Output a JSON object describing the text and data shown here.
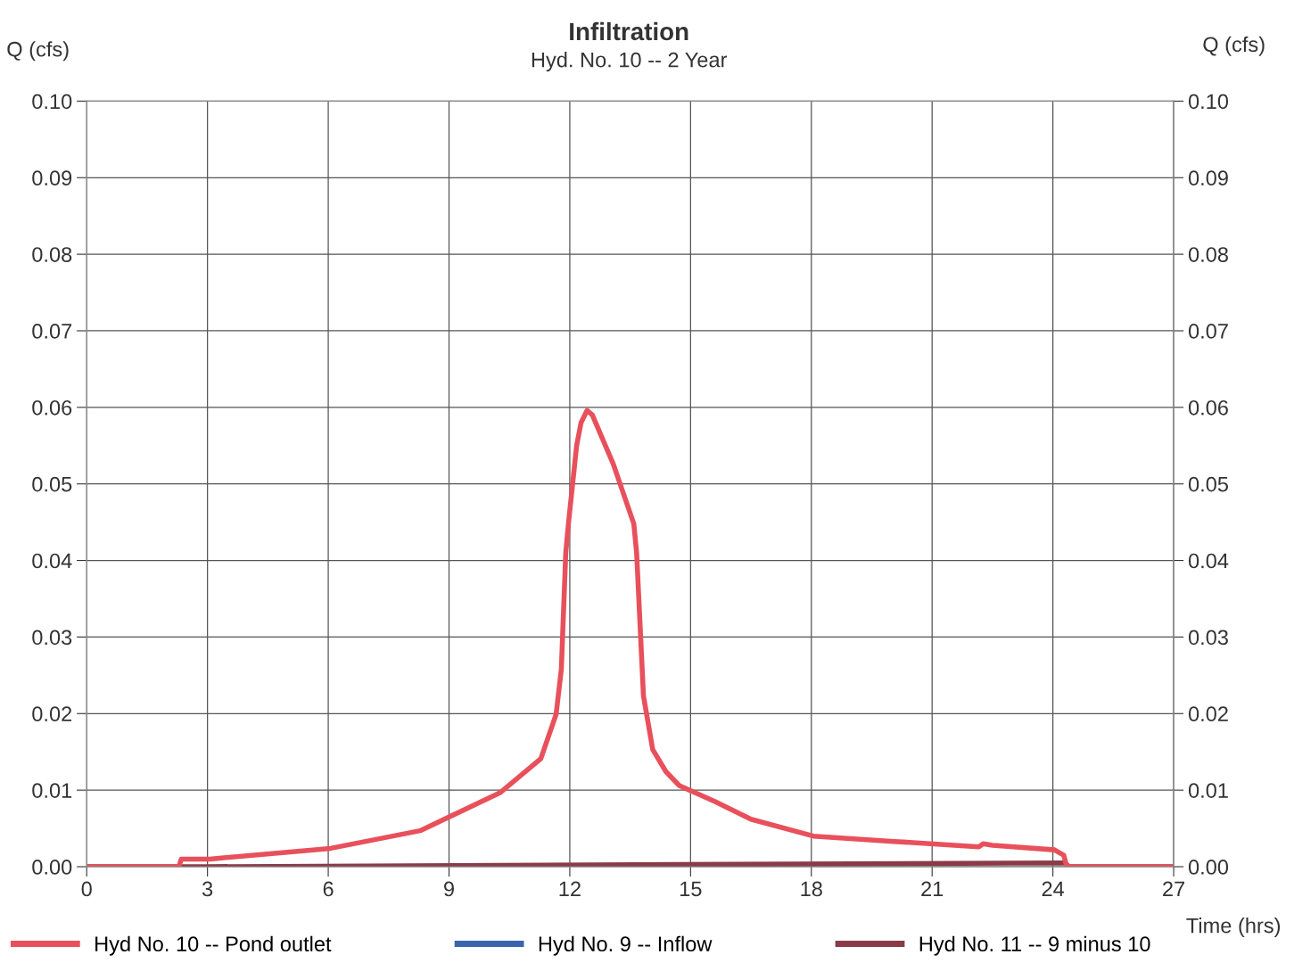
{
  "chart_data": {
    "type": "line",
    "title": "Infiltration",
    "subtitle": "Hyd. No. 10 -- 2 Year",
    "xlabel": "Time (hrs)",
    "ylabel": "Q (cfs)",
    "y2label": "Q (cfs)",
    "xlim": [
      0,
      27
    ],
    "xticks": [
      0,
      3,
      6,
      9,
      12,
      15,
      18,
      21,
      24,
      27
    ],
    "ylim": [
      0,
      0.1
    ],
    "yticks": [
      {
        "value": 0,
        "label": "0.00"
      },
      {
        "value": 0.01,
        "label": "0.01"
      },
      {
        "value": 0.02,
        "label": "0.02"
      },
      {
        "value": 0.03,
        "label": "0.03"
      },
      {
        "value": 0.04,
        "label": "0.04"
      },
      {
        "value": 0.05,
        "label": "0.05"
      },
      {
        "value": 0.06,
        "label": "0.06"
      },
      {
        "value": 0.07,
        "label": "0.07"
      },
      {
        "value": 0.08,
        "label": "0.08"
      },
      {
        "value": 0.09,
        "label": "0.09"
      },
      {
        "value": 0.1,
        "label": "0.10"
      }
    ],
    "y2lim": [
      0,
      0.1
    ],
    "y2ticks": [
      {
        "value": 0,
        "label": "0.00"
      },
      {
        "value": 0.01,
        "label": "0.01"
      },
      {
        "value": 0.02,
        "label": "0.02"
      },
      {
        "value": 0.03,
        "label": "0.03"
      },
      {
        "value": 0.04,
        "label": "0.04"
      },
      {
        "value": 0.05,
        "label": "0.05"
      },
      {
        "value": 0.06,
        "label": "0.06"
      },
      {
        "value": 0.07,
        "label": "0.07"
      },
      {
        "value": 0.08,
        "label": "0.08"
      },
      {
        "value": 0.09,
        "label": "0.09"
      },
      {
        "value": 0.1,
        "label": "0.10"
      }
    ],
    "grid": true,
    "legend": "bottom",
    "marker": "none",
    "line_style": "solid",
    "series": [
      {
        "name": "Hyd No. 10 -- Pond outlet",
        "color": "#e8505b",
        "x": [
          0,
          2.29,
          2.35,
          3.06,
          6.06,
          8.28,
          10.28,
          11.28,
          11.66,
          11.79,
          11.9,
          11.97,
          12.17,
          12.28,
          12.43,
          12.56,
          13.08,
          13.59,
          13.66,
          13.83,
          14.06,
          14.39,
          14.72,
          15.61,
          16.5,
          18.05,
          20.05,
          22.16,
          22.27,
          22.5,
          24.04,
          24.27,
          24.33,
          24.4,
          27
        ],
        "values": [
          0,
          0,
          0.001,
          0.001,
          0.0024,
          0.0047,
          0.0097,
          0.0141,
          0.0199,
          0.0258,
          0.041,
          0.045,
          0.055,
          0.058,
          0.0596,
          0.059,
          0.0526,
          0.0448,
          0.041,
          0.0223,
          0.0153,
          0.0124,
          0.0106,
          0.0085,
          0.0062,
          0.004,
          0.0033,
          0.0026,
          0.003,
          0.0028,
          0.0022,
          0.0015,
          0.0003,
          0,
          0
        ]
      },
      {
        "name": "Hyd No. 9 -- Inflow",
        "color": "#3a63b0"
      },
      {
        "name": "Hyd No. 11 -- 9 minus 10",
        "color": "#8b3a48",
        "x": [
          0,
          3,
          24.3,
          24.4,
          27
        ],
        "values": [
          0,
          0,
          0.0005,
          0,
          0
        ]
      }
    ]
  }
}
